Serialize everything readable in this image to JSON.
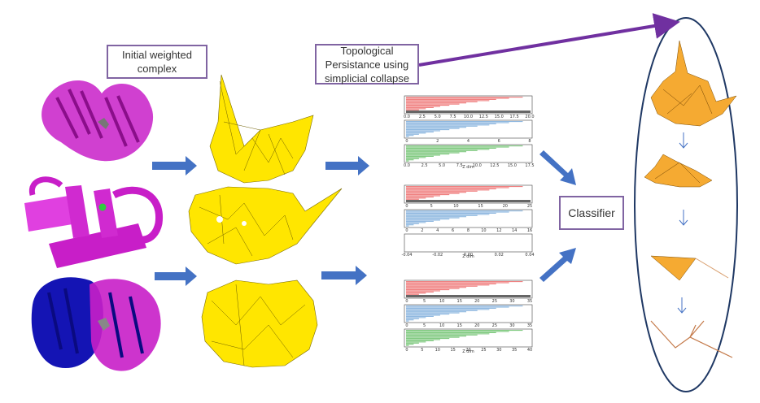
{
  "labels": {
    "initial_complex": [
      "Initial weighted",
      "complex"
    ],
    "topological": [
      "Topological",
      "Persistance using",
      "simplicial collapse"
    ],
    "classifier": "Classifier"
  },
  "colors": {
    "protein_magenta": "#c81ec8",
    "protein_blue": "#1414b4",
    "complex_yellow": "#ffe600",
    "collapse_orange": "#f5aa32",
    "arrow_blue": "#4472c4",
    "big_arrow_purple": "#7030a0",
    "ellipse_blue": "#1f3864",
    "box_border": "#8064a2",
    "barcode_red": "#f08080",
    "barcode_blue": "#8fb8e0",
    "barcode_green": "#7fc97f",
    "barcode_gray": "#666666"
  },
  "barcodes": [
    {
      "panels": [
        {
          "color": "red",
          "ticks": [
            "0.0",
            "2.5",
            "5.0",
            "7.5",
            "10.0",
            "12.5",
            "15.0",
            "17.5",
            "20.0"
          ]
        },
        {
          "color": "blue",
          "ticks": [
            "0",
            "2",
            "4",
            "6",
            "8"
          ]
        },
        {
          "color": "green",
          "ticks": [
            "0.0",
            "2.5",
            "5.0",
            "7.5",
            "10.0",
            "12.5",
            "15.0",
            "17.5"
          ]
        }
      ],
      "xlabel": "Z dim"
    },
    {
      "panels": [
        {
          "color": "red",
          "ticks": [
            "0",
            "5",
            "10",
            "15",
            "20",
            "25"
          ]
        },
        {
          "color": "blue",
          "ticks": [
            "0",
            "2",
            "4",
            "6",
            "8",
            "10",
            "12",
            "14",
            "16"
          ]
        },
        {
          "color": "empty",
          "ticks": [
            "-0.04",
            "-0.02",
            "0.00",
            "0.02",
            "0.04"
          ]
        }
      ],
      "xlabel": "Z dim"
    },
    {
      "panels": [
        {
          "color": "red",
          "ticks": [
            "0",
            "5",
            "10",
            "15",
            "20",
            "25",
            "30",
            "35"
          ]
        },
        {
          "color": "blue",
          "ticks": [
            "0",
            "5",
            "10",
            "15",
            "20",
            "25",
            "30",
            "35"
          ]
        },
        {
          "color": "green",
          "ticks": [
            "0",
            "5",
            "10",
            "15",
            "20",
            "25",
            "30",
            "35",
            "40"
          ]
        }
      ],
      "xlabel": "Z dim"
    }
  ]
}
